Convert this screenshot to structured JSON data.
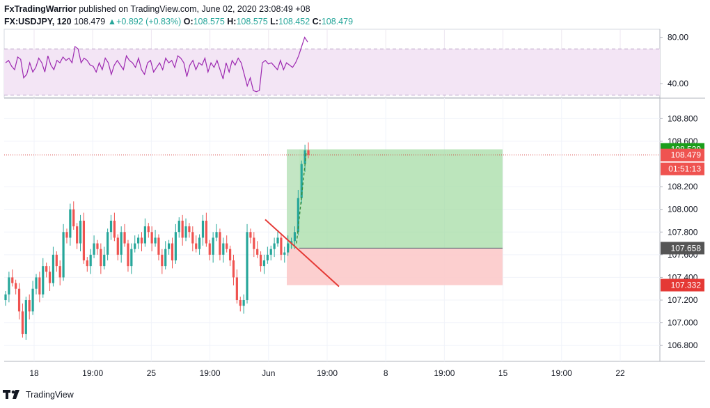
{
  "header": {
    "publisher": "FxTradingWarrior",
    "published_text": "published on TradingView.com, June 02, 2020 23:08:49 +08",
    "symbol": "FX:USDJPY, 120",
    "last": "108.479",
    "change": "+0.892 (+0.83%)",
    "open_label": "O:",
    "open": "108.575",
    "high_label": "H:",
    "high": "108.575",
    "low_label": "L:",
    "low": "108.452",
    "close_label": "C:",
    "close": "108.479"
  },
  "footer": {
    "brand": "TradingView"
  },
  "colors": {
    "up": "#26a69a",
    "down": "#ef5350",
    "rsi_line": "#9c27b0",
    "rsi_band": "#f3e5f5",
    "profit_zone": "#a5dca5",
    "loss_zone": "#fccaca",
    "trend_line": "#e53935",
    "last_price_line": "#d32f2f"
  },
  "chart_data": [
    {
      "type": "line",
      "name": "rsi-panel",
      "ylim": [
        28,
        87
      ],
      "yticks": [
        {
          "value": 80,
          "label": "80.00"
        },
        {
          "value": 40,
          "label": "40.00"
        }
      ],
      "band": [
        30,
        70
      ],
      "values": [
        58,
        60,
        55,
        52,
        63,
        61,
        45,
        48,
        58,
        50,
        54,
        62,
        58,
        50,
        64,
        56,
        52,
        60,
        58,
        63,
        60,
        62,
        58,
        72,
        70,
        58,
        62,
        60,
        56,
        55,
        50,
        58,
        52,
        62,
        58,
        48,
        56,
        60,
        56,
        52,
        64,
        60,
        58,
        54,
        62,
        52,
        48,
        58,
        60,
        50,
        54,
        58,
        52,
        62,
        58,
        60,
        54,
        64,
        62,
        58,
        46,
        56,
        60,
        52,
        58,
        56,
        62,
        50,
        58,
        54,
        60,
        52,
        44,
        58,
        50,
        60,
        56,
        62,
        58,
        48,
        38,
        45,
        34,
        33,
        34,
        58,
        60,
        57,
        58,
        55,
        52,
        60,
        52,
        58,
        56,
        54,
        58,
        64,
        72,
        80,
        76
      ]
    },
    {
      "type": "candlestick",
      "name": "price-panel",
      "ylim": [
        106.66,
        108.98
      ],
      "y_tick_labels": [
        "108.800",
        "108.600",
        "108.200",
        "108.000",
        "107.800",
        "107.600",
        "107.400",
        "107.200",
        "107.000",
        "106.800"
      ],
      "x_tick_labels": [
        "18",
        "19:00",
        "25",
        "19:00",
        "Jun",
        "19:00",
        "8",
        "19:00",
        "15",
        "19:00",
        "22"
      ],
      "price_labels": [
        {
          "label": "108.529",
          "value": 108.529
        },
        {
          "label": "108.479",
          "value": 108.479
        },
        {
          "label": "01:51:13",
          "value": 108.479
        },
        {
          "label": "107.658",
          "value": 107.658
        },
        {
          "label": "107.332",
          "value": 107.332
        }
      ],
      "last_price": 108.479,
      "position": {
        "entry": 107.658,
        "target": 108.529,
        "stop": 107.332
      },
      "trend_line": {
        "start": 107.91,
        "end": 107.32
      },
      "projection_line": {
        "start": 107.7,
        "end": 108.5
      },
      "closes": [
        107.25,
        107.4,
        107.35,
        107.3,
        107.1,
        106.9,
        107.2,
        107.1,
        107.3,
        107.4,
        107.25,
        107.5,
        107.45,
        107.35,
        107.6,
        107.5,
        107.4,
        107.8,
        107.75,
        108.0,
        107.85,
        107.7,
        107.9,
        107.55,
        107.5,
        107.6,
        107.7,
        107.65,
        107.5,
        107.6,
        107.8,
        107.9,
        107.75,
        107.6,
        107.8,
        107.7,
        107.5,
        107.65,
        107.7,
        107.75,
        107.7,
        107.85,
        107.8,
        107.7,
        107.75,
        107.6,
        107.5,
        107.65,
        107.7,
        107.55,
        107.8,
        107.9,
        107.75,
        107.85,
        107.8,
        107.7,
        107.65,
        107.75,
        107.9,
        107.7,
        107.6,
        107.75,
        107.8,
        107.6,
        107.7,
        107.65,
        107.55,
        107.4,
        107.2,
        107.15,
        107.2,
        107.8,
        107.75,
        107.65,
        107.6,
        107.5,
        107.55,
        107.6,
        107.65,
        107.7,
        107.75,
        107.6,
        107.62,
        107.7,
        107.72,
        107.8,
        108.1,
        108.4,
        108.52,
        108.48
      ]
    }
  ]
}
